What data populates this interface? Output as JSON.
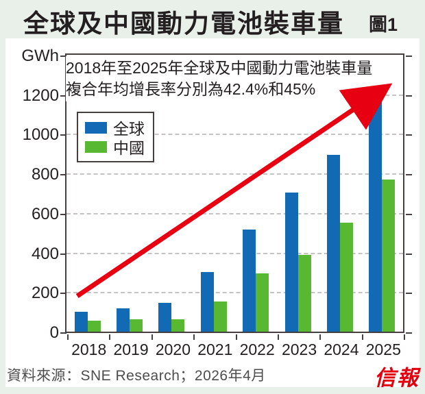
{
  "header": {
    "title": "全球及中國動力電池裝車量",
    "figure_label": "圖1"
  },
  "annotation": {
    "line1": "2018年至2025年全球及中國動力電池裝車量",
    "line2": "複合年均增長率分別為42.4%和45%"
  },
  "footer": {
    "source": "資料來源：SNE Research；2026年4月",
    "logo": "信報",
    "logo_color": "#e2000f"
  },
  "colors": {
    "page_background": "#e8f0e9",
    "card_background": "#ffffff",
    "axis": "#453f3f",
    "gridline": "#c3c3c3",
    "global_blue": "#1269b4",
    "china_green": "#58b831",
    "arrow_red": "#e60012"
  },
  "chart_data": {
    "type": "bar",
    "title": "全球及中國動力電池裝車量",
    "categories": [
      "2018",
      "2019",
      "2020",
      "2021",
      "2022",
      "2023",
      "2024",
      "2025"
    ],
    "series": [
      {
        "name": "全球",
        "color": "#1269b4",
        "values": [
          100,
          118,
          145,
          300,
          515,
          705,
          895,
          1190
        ]
      },
      {
        "name": "中國",
        "color": "#58b831",
        "values": [
          57,
          62,
          64,
          154,
          295,
          388,
          550,
          770
        ]
      }
    ],
    "ylabel": "GWh",
    "xlabel": "",
    "ylim": [
      0,
      1400
    ],
    "yticks": [
      0,
      200,
      400,
      600,
      800,
      1000,
      1200
    ],
    "grid": true,
    "legend_position": "upper-left",
    "annotation_text": "2018年至2025年全球及中國動力電池裝車量複合年均增長率分別為42.4%和45%",
    "trend_arrow": {
      "color": "#e60012",
      "from": {
        "category": "2018",
        "value": 180
      },
      "to": {
        "category": "2025",
        "value": 1230
      }
    }
  }
}
